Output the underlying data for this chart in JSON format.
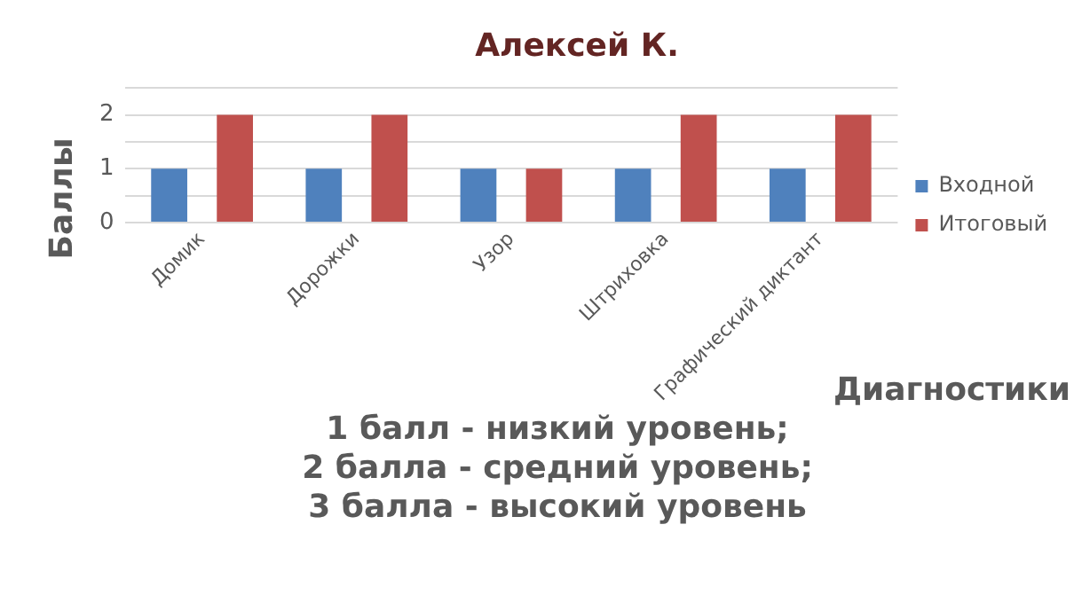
{
  "chart_data": {
    "type": "bar",
    "title": "Алексей К.",
    "xlabel": "Диагностики",
    "ylabel": "Баллы",
    "categories": [
      "Домик",
      "Дорожки",
      "Узор",
      "Штриховка",
      "Графический диктант"
    ],
    "series": [
      {
        "name": "Входной",
        "color": "#4f81bd",
        "values": [
          1,
          1,
          1,
          1,
          1
        ]
      },
      {
        "name": "Итоговый",
        "color": "#c0504d",
        "values": [
          2,
          2,
          1,
          2,
          2
        ]
      }
    ],
    "ylim": [
      0,
      2.5
    ],
    "yticks": [
      0,
      {
        "value": 0.5,
        "label": null
      },
      1,
      {
        "value": 1.5,
        "label": null
      },
      2,
      {
        "value": 2.5,
        "label": null
      }
    ],
    "grid": "y",
    "legend": "right",
    "annotations": [
      "1 балл - низкий уровень;",
      "2 балла - средний уровень;",
      "3 балла - высокий уровень"
    ]
  }
}
